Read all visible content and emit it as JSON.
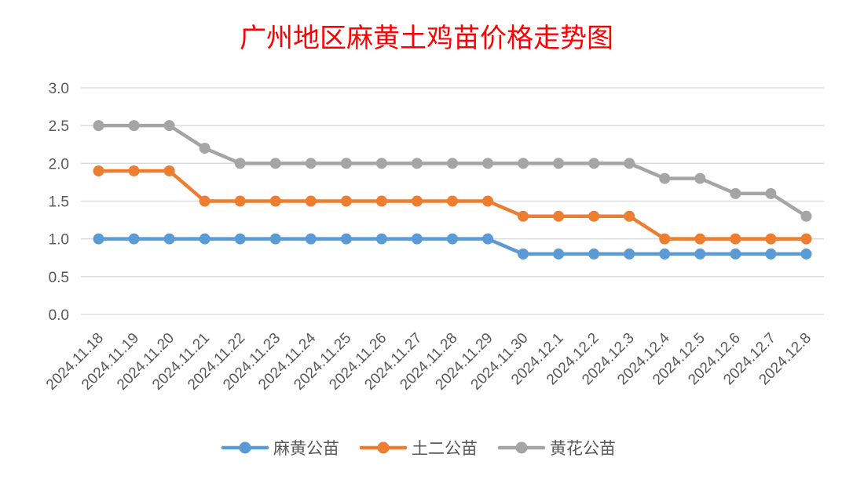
{
  "chart_data": {
    "type": "line",
    "title": "广州地区麻黄土鸡苗价格走势图",
    "title_color": "#ff0000",
    "xlabel": "",
    "ylabel": "",
    "ylim": [
      0,
      3.0
    ],
    "yticks": [
      "0.0",
      "0.5",
      "1.0",
      "1.5",
      "2.0",
      "2.5",
      "3.0"
    ],
    "grid": true,
    "legend_position": "bottom",
    "categories": [
      "2024.11.18",
      "2024.11.19",
      "2024.11.20",
      "2024.11.21",
      "2024.11.22",
      "2024.11.23",
      "2024.11.24",
      "2024.11.25",
      "2024.11.26",
      "2024.11.27",
      "2024.11.28",
      "2024.11.29",
      "2024.11.30",
      "2024.12.1",
      "2024.12.2",
      "2024.12.3",
      "2024.12.4",
      "2024.12.5",
      "2024.12.6",
      "2024.12.7",
      "2024.12.8"
    ],
    "series": [
      {
        "name": "麻黄公苗",
        "color": "#5b9bd5",
        "values": [
          1.0,
          1.0,
          1.0,
          1.0,
          1.0,
          1.0,
          1.0,
          1.0,
          1.0,
          1.0,
          1.0,
          1.0,
          0.8,
          0.8,
          0.8,
          0.8,
          0.8,
          0.8,
          0.8,
          0.8,
          0.8
        ]
      },
      {
        "name": "土二公苗",
        "color": "#ed7d31",
        "values": [
          1.9,
          1.9,
          1.9,
          1.5,
          1.5,
          1.5,
          1.5,
          1.5,
          1.5,
          1.5,
          1.5,
          1.5,
          1.3,
          1.3,
          1.3,
          1.3,
          1.0,
          1.0,
          1.0,
          1.0,
          1.0
        ]
      },
      {
        "name": "黄花公苗",
        "color": "#a5a5a5",
        "values": [
          2.5,
          2.5,
          2.5,
          2.2,
          2.0,
          2.0,
          2.0,
          2.0,
          2.0,
          2.0,
          2.0,
          2.0,
          2.0,
          2.0,
          2.0,
          2.0,
          1.8,
          1.8,
          1.6,
          1.6,
          1.3
        ]
      }
    ],
    "gridline_color": "#d9d9d9"
  }
}
